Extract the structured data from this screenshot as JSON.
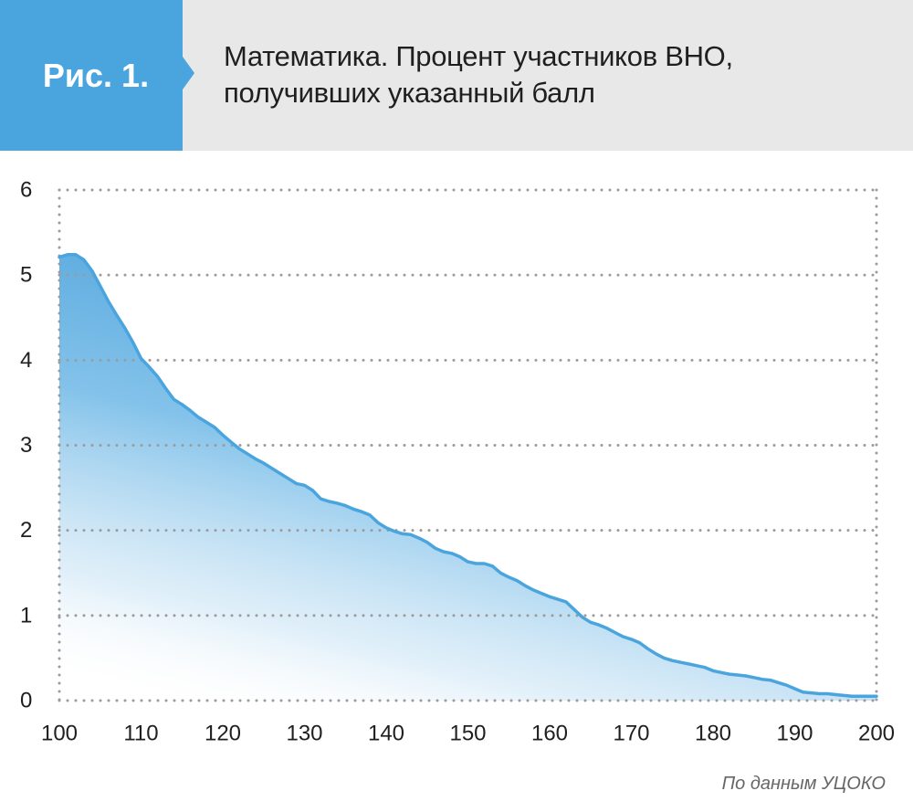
{
  "header": {
    "badge": "Рис. 1.",
    "title_line_1": "Математика. Процент участников ВНО,",
    "title_line_2": "получивших указанный балл"
  },
  "source": "По данным УЦОКО",
  "colors": {
    "accent": "#4aa5de",
    "header_bg": "#e8e8e8",
    "grid": "#9b9b9b",
    "text": "#1f1f1f"
  },
  "chart_data": {
    "type": "area",
    "xlim": [
      100,
      200
    ],
    "ylim": [
      0,
      6
    ],
    "xticks": [
      100,
      110,
      120,
      130,
      140,
      150,
      160,
      170,
      180,
      190,
      200
    ],
    "yticks": [
      0,
      1,
      2,
      3,
      4,
      5,
      6
    ],
    "grid": true,
    "x": [
      100,
      101,
      102,
      103,
      104,
      105,
      106,
      107,
      108,
      109,
      110,
      111,
      112,
      113,
      114,
      115,
      116,
      117,
      118,
      119,
      120,
      121,
      122,
      123,
      124,
      125,
      126,
      127,
      128,
      129,
      130,
      131,
      132,
      133,
      134,
      135,
      136,
      137,
      138,
      139,
      140,
      141,
      142,
      143,
      144,
      145,
      146,
      147,
      148,
      149,
      150,
      151,
      152,
      153,
      154,
      155,
      156,
      157,
      158,
      159,
      160,
      161,
      162,
      163,
      164,
      165,
      166,
      167,
      168,
      169,
      170,
      171,
      172,
      173,
      174,
      175,
      176,
      177,
      178,
      179,
      180,
      181,
      182,
      183,
      184,
      185,
      186,
      187,
      188,
      189,
      190,
      191,
      192,
      193,
      194,
      195,
      196,
      197,
      198,
      199,
      200
    ],
    "y": [
      5.21,
      5.24,
      5.24,
      5.18,
      5.05,
      4.87,
      4.69,
      4.53,
      4.38,
      4.21,
      4.02,
      3.92,
      3.81,
      3.67,
      3.54,
      3.48,
      3.41,
      3.33,
      3.27,
      3.21,
      3.12,
      3.04,
      2.96,
      2.9,
      2.84,
      2.79,
      2.73,
      2.67,
      2.61,
      2.55,
      2.53,
      2.47,
      2.37,
      2.34,
      2.32,
      2.29,
      2.25,
      2.22,
      2.18,
      2.09,
      2.03,
      1.99,
      1.96,
      1.95,
      1.91,
      1.86,
      1.79,
      1.75,
      1.73,
      1.69,
      1.63,
      1.61,
      1.61,
      1.58,
      1.5,
      1.45,
      1.41,
      1.35,
      1.3,
      1.26,
      1.22,
      1.19,
      1.16,
      1.07,
      0.98,
      0.92,
      0.89,
      0.85,
      0.8,
      0.75,
      0.72,
      0.68,
      0.61,
      0.55,
      0.5,
      0.47,
      0.45,
      0.43,
      0.41,
      0.39,
      0.35,
      0.33,
      0.31,
      0.3,
      0.29,
      0.27,
      0.25,
      0.24,
      0.21,
      0.18,
      0.14,
      0.1,
      0.09,
      0.08,
      0.08,
      0.07,
      0.06,
      0.05,
      0.05,
      0.05,
      0.05
    ]
  }
}
